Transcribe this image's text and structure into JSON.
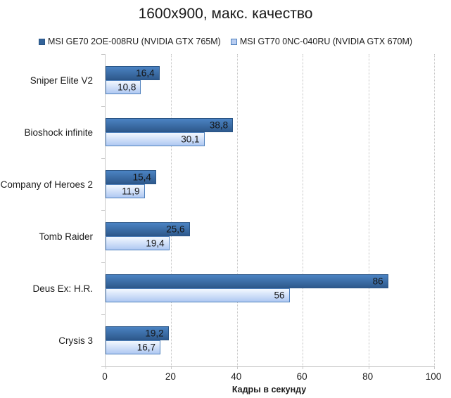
{
  "chart_data": {
    "type": "bar",
    "orientation": "horizontal",
    "title": "1600x900, макс. качество",
    "categories": [
      "Sniper Elite V2",
      "Bioshock infinite",
      "Company of Heroes 2",
      "Tomb Raider",
      "Deus Ex: H.R.",
      "Crysis 3"
    ],
    "series": [
      {
        "name": "MSI GE70 2OE-008RU (NVIDIA GTX 765M)",
        "values": [
          16.4,
          38.8,
          15.4,
          25.6,
          86,
          19.2
        ],
        "value_labels": [
          "16,4",
          "38,8",
          "15,4",
          "25,6",
          "86",
          "19,2"
        ],
        "fill_top": "#4b83c3",
        "fill_bottom": "#2e598c",
        "border": "#2a5586",
        "swatch": "#336399"
      },
      {
        "name": "MSI GT70 0NC-040RU (NVIDIA GTX 670M)",
        "values": [
          10.8,
          30.1,
          11.9,
          19.4,
          56,
          16.7
        ],
        "value_labels": [
          "10,8",
          "30,1",
          "11,9",
          "19,4",
          "56",
          "16,7"
        ],
        "fill_top": "#f3f8ff",
        "fill_bottom": "#afc8f2",
        "border": "#4f81bd",
        "swatch": "#b9cdf1"
      }
    ],
    "xlabel": "Кадры в секунду",
    "xlim": [
      0,
      100
    ],
    "x_tick_values": [
      0,
      20,
      40,
      60,
      80,
      100
    ],
    "x_tick_labels": [
      "0",
      "20",
      "40",
      "60",
      "80",
      "100"
    ],
    "gridline_values": [
      20,
      40,
      60,
      80,
      100
    ],
    "grid": "vertical-dotted",
    "legend_position": "top",
    "value_label_position": "inside-end",
    "axis_color": "#c9c9c9",
    "gridline_color": "#c3c3c3"
  }
}
